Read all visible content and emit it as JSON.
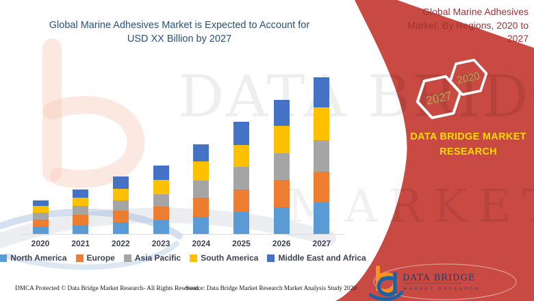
{
  "header": {
    "title": "Global Marine Adhesives Market is Expected to Account for USD XX Billion by 2027",
    "title_color": "#27517E"
  },
  "banner": {
    "heading": "Global Marine Adhesives Market, By Regions, 2020 to 2027",
    "heading_color": "#9D3335",
    "band_color": "#C94A43",
    "brand": "DATA BRIDGE MARKET RESEARCH",
    "brand_color": "#FFDC00",
    "hexagons": [
      {
        "label": "2027"
      },
      {
        "label": "2020"
      }
    ],
    "hexagon_text_color": "#A9AB57"
  },
  "watermark": {
    "line1": "DATA BRIDGE",
    "line2": "MARKET RESEARCH"
  },
  "chart_data": {
    "type": "bar",
    "stacked": true,
    "title": "Global Marine Adhesives Market is Expected to Account for USD XX Billion by 2027",
    "categories": [
      "2020",
      "2021",
      "2022",
      "2023",
      "2024",
      "2025",
      "2026",
      "2027"
    ],
    "series": [
      {
        "name": "North America",
        "color": "#5B9BD5",
        "values": [
          10,
          13,
          17,
          20,
          25,
          32,
          39,
          46
        ]
      },
      {
        "name": "Europe",
        "color": "#ED7D31",
        "values": [
          11,
          15,
          17,
          20,
          28,
          33,
          40,
          45
        ]
      },
      {
        "name": "Asia Pacific",
        "color": "#A5A5A5",
        "values": [
          10,
          13,
          15,
          18,
          25,
          33,
          39,
          46
        ]
      },
      {
        "name": "South America",
        "color": "#FFC000",
        "values": [
          10,
          12,
          17,
          21,
          28,
          32,
          40,
          48
        ]
      },
      {
        "name": "Middle East and Africa",
        "color": "#4472C4",
        "values": [
          8,
          12,
          18,
          21,
          25,
          34,
          38,
          44
        ]
      }
    ],
    "xlabel": "",
    "ylabel": "",
    "ylim": [
      0,
      240
    ],
    "grid": false,
    "legend_position": "bottom",
    "note": "No numeric y-axis is shown in the figure (USD XX Billion placeholder); values are relative units estimated from bar segment heights"
  },
  "logo": {
    "title": "DATA BRIDGE",
    "subtitle": "MARKET RESEARCH"
  },
  "footer": {
    "left": "DMCA Protected © Data Bridge Market Research- All Rights Reserved.",
    "right": "Source: Data Bridge Market Research Market Analysis Study 2020"
  }
}
